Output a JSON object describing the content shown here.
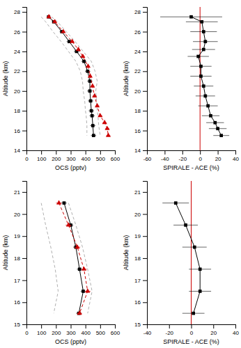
{
  "chart_data": [
    {
      "type": "line",
      "xlabel": "OCS (pptv)",
      "ylabel": "Altitude (km)",
      "xlim": [
        0,
        600
      ],
      "ylim": [
        14,
        28.5
      ],
      "xticks": [
        0,
        100,
        200,
        300,
        400,
        500,
        600
      ],
      "yticks": [
        14,
        16,
        18,
        20,
        22,
        24,
        26,
        28
      ],
      "grid": false,
      "series": [
        {
          "color": "#b0b0b0",
          "marker": "none",
          "line_style": "dashed",
          "x": [
            100,
            130,
            180,
            235,
            285,
            335,
            365,
            380,
            385,
            395,
            400,
            405,
            410,
            410
          ],
          "values": [
            27.5,
            27,
            26,
            25,
            24,
            23,
            22,
            21,
            20,
            19,
            18,
            17.5,
            16.5,
            15.5
          ]
        },
        {
          "color": "#b0b0b0",
          "marker": "none",
          "line_style": "dashed",
          "x": [
            170,
            210,
            270,
            330,
            385,
            440,
            465,
            480,
            470,
            475,
            480,
            485,
            490,
            500
          ],
          "values": [
            27.5,
            27,
            26,
            25,
            24,
            23,
            22,
            21,
            20,
            19,
            18,
            17.5,
            16.5,
            15.5
          ]
        },
        {
          "color": "#000000",
          "marker": "square",
          "line_style": "solid",
          "x": [
            150,
            185,
            240,
            290,
            340,
            390,
            415,
            430,
            430,
            435,
            440,
            445,
            450,
            455
          ],
          "values": [
            27.5,
            27,
            26,
            25,
            24,
            23,
            22,
            21,
            20,
            19,
            18,
            17.5,
            16.5,
            15.5
          ],
          "xerr": [
            12,
            12,
            15,
            18,
            18,
            18,
            18,
            18,
            18,
            18,
            18,
            18,
            18,
            18
          ]
        },
        {
          "color": "#cc0000",
          "marker": "triangle",
          "line_style": "dashed",
          "x": [
            152,
            192,
            250,
            310,
            352,
            382,
            418,
            432,
            448,
            462,
            480,
            500,
            530,
            548,
            555
          ],
          "values": [
            27.5,
            27,
            26,
            25,
            24.2,
            23.5,
            22.5,
            21.5,
            20.5,
            19.5,
            18.5,
            17.5,
            16.8,
            16.2,
            15.5
          ],
          "xerr": [
            8,
            8,
            10,
            12,
            12,
            12,
            12,
            12,
            12,
            14,
            14,
            14,
            14,
            14,
            14
          ]
        }
      ]
    },
    {
      "type": "line",
      "xlabel": "SPIRALE - ACE (%)",
      "ylabel": "Altitude (km)",
      "xlim": [
        -60,
        40
      ],
      "ylim": [
        14,
        28.5
      ],
      "xticks": [
        -60,
        -40,
        -20,
        0,
        20,
        40
      ],
      "yticks": [
        14,
        16,
        18,
        20,
        22,
        24,
        26,
        28
      ],
      "grid": false,
      "series": [
        {
          "type": "rule",
          "color": "#cc0000",
          "line_style": "solid",
          "x": [
            0
          ]
        },
        {
          "color": "#000000",
          "marker": "square",
          "line_style": "solid",
          "x": [
            -10,
            2,
            4,
            6,
            4,
            -2,
            1,
            1,
            4,
            6,
            9,
            12,
            17,
            20,
            24
          ],
          "values": [
            27.5,
            27,
            26,
            25,
            24.2,
            23.5,
            22.5,
            21.5,
            20.5,
            19.5,
            18.5,
            17.5,
            16.8,
            16.2,
            15.5
          ],
          "xerr": [
            35,
            18,
            15,
            14,
            13,
            12,
            12,
            12,
            11,
            11,
            11,
            10,
            10,
            10,
            9
          ]
        }
      ]
    },
    {
      "type": "line",
      "xlabel": "OCS (pptv)",
      "ylabel": "Altitude (km)",
      "xlim": [
        0,
        600
      ],
      "ylim": [
        15,
        21.5
      ],
      "xticks": [
        0,
        100,
        200,
        300,
        400,
        500,
        600
      ],
      "yticks": [
        15,
        16,
        17,
        18,
        19,
        20,
        21
      ],
      "grid": false,
      "series": [
        {
          "color": "#b0b0b0",
          "marker": "none",
          "line_style": "dashed",
          "x": [
            100,
            130,
            165,
            195,
            215,
            185
          ],
          "values": [
            20.5,
            19.5,
            18.5,
            17.5,
            16.5,
            15.5
          ]
        },
        {
          "color": "#b0b0b0",
          "marker": "none",
          "line_style": "dashed",
          "x": [
            285,
            335,
            380,
            415,
            445,
            415
          ],
          "values": [
            20.5,
            19.5,
            18.5,
            17.5,
            16.5,
            15.5
          ]
        },
        {
          "color": "#000000",
          "marker": "square",
          "line_style": "solid",
          "x": [
            255,
            300,
            335,
            360,
            385,
            355
          ],
          "values": [
            20.5,
            19.5,
            18.5,
            17.5,
            16.5,
            15.5
          ],
          "xerr": [
            18,
            18,
            18,
            18,
            18,
            18
          ]
        },
        {
          "color": "#cc0000",
          "marker": "triangle",
          "line_style": "dashed",
          "x": [
            220,
            285,
            345,
            390,
            415,
            360
          ],
          "values": [
            20.5,
            19.5,
            18.5,
            17.5,
            16.5,
            15.5
          ],
          "xerr": [
            20,
            20,
            20,
            20,
            20,
            18
          ]
        }
      ]
    },
    {
      "type": "line",
      "xlabel": "SPIRALE - ACE (%)",
      "ylabel": "Altitude (km)",
      "xlim": [
        -40,
        40
      ],
      "ylim": [
        15,
        21.5
      ],
      "xticks": [
        -40,
        -20,
        0,
        20,
        40
      ],
      "yticks": [
        15,
        16,
        17,
        18,
        19,
        20,
        21
      ],
      "grid": false,
      "series": [
        {
          "type": "rule",
          "color": "#cc0000",
          "line_style": "solid",
          "x": [
            0
          ]
        },
        {
          "color": "#000000",
          "marker": "square",
          "line_style": "solid",
          "x": [
            -14,
            -5,
            3,
            8,
            8,
            2
          ],
          "values": [
            20.5,
            19.5,
            18.5,
            17.5,
            16.5,
            15.5
          ],
          "xerr": [
            12,
            11,
            11,
            10,
            10,
            10
          ]
        }
      ]
    }
  ]
}
